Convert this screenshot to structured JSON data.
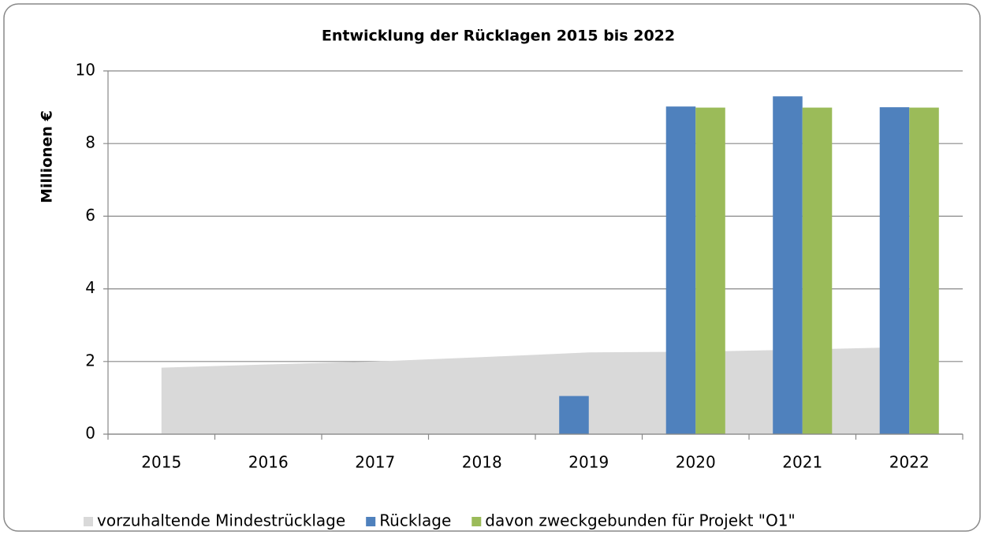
{
  "chart_data": {
    "type": "bar",
    "title": "Entwicklung der Rücklagen 2015 bis 2022",
    "y_label": "Millionen €",
    "categories": [
      "2015",
      "2016",
      "2017",
      "2018",
      "2019",
      "2020",
      "2021",
      "2022"
    ],
    "series": [
      {
        "name": "vorzuhaltende Mindestrücklage",
        "type": "area",
        "color": "#d9d9d9",
        "values": [
          1.83,
          1.92,
          2.0,
          2.12,
          2.25,
          2.27,
          2.33,
          2.4
        ]
      },
      {
        "name": "Rücklage",
        "type": "bar",
        "color": "#4f81bd",
        "values": [
          null,
          null,
          null,
          null,
          1.05,
          9.02,
          9.3,
          9.0
        ]
      },
      {
        "name": "davon zweckgebunden für Projekt \"O1\"",
        "type": "bar",
        "color": "#9bbb59",
        "values": [
          null,
          null,
          null,
          null,
          null,
          8.99,
          8.99,
          8.99
        ]
      }
    ],
    "ylim": [
      0,
      10
    ],
    "yticks": [
      0,
      2,
      4,
      6,
      8,
      10
    ],
    "grid": true,
    "legend": "bottom"
  }
}
